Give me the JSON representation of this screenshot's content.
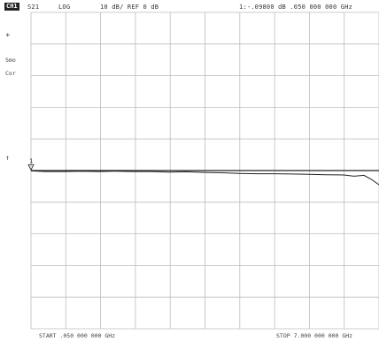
{
  "header": {
    "channel": "CH1",
    "parameter": "S21",
    "format": "LOG",
    "scale": "10 dB/ REF 0 dB",
    "marker": "1:-.09800 dB  .050 000 000 GHz"
  },
  "annotations": {
    "marker_symbol": "*",
    "smo": "Smo",
    "cor": "Cor",
    "ref_arrow": "↑",
    "marker_flag": "1"
  },
  "footer": {
    "start": "START .050 000 000 GHz",
    "stop": "STOP  7.000 000 000 GHz"
  },
  "colors": {
    "grid": "#bdbdbd",
    "trace": "#222222",
    "reference": "#222222"
  },
  "chart_data": {
    "type": "line",
    "title": "",
    "xlabel": "",
    "ylabel": "",
    "xlim": [
      0.05,
      7.0
    ],
    "ylim": [
      -50,
      50
    ],
    "x_unit": "GHz",
    "y_unit": "dB",
    "reference_level": 0,
    "grid": true,
    "divisions": {
      "x": 10,
      "y": 10
    },
    "series": [
      {
        "name": "",
        "x": [
          0.05,
          0.35,
          0.7,
          1.05,
          1.4,
          1.75,
          2.1,
          2.45,
          2.8,
          3.15,
          3.5,
          3.85,
          4.2,
          4.55,
          4.9,
          5.25,
          5.6,
          5.95,
          6.3,
          6.5,
          6.7,
          6.85,
          7.0
        ],
        "y": [
          -0.1,
          -0.3,
          -0.3,
          -0.2,
          -0.3,
          -0.2,
          -0.3,
          -0.3,
          -0.5,
          -0.4,
          -0.6,
          -0.7,
          -0.9,
          -1.0,
          -1.0,
          -1.1,
          -1.2,
          -1.3,
          -1.4,
          -1.8,
          -1.5,
          -2.8,
          -4.5
        ]
      }
    ]
  }
}
